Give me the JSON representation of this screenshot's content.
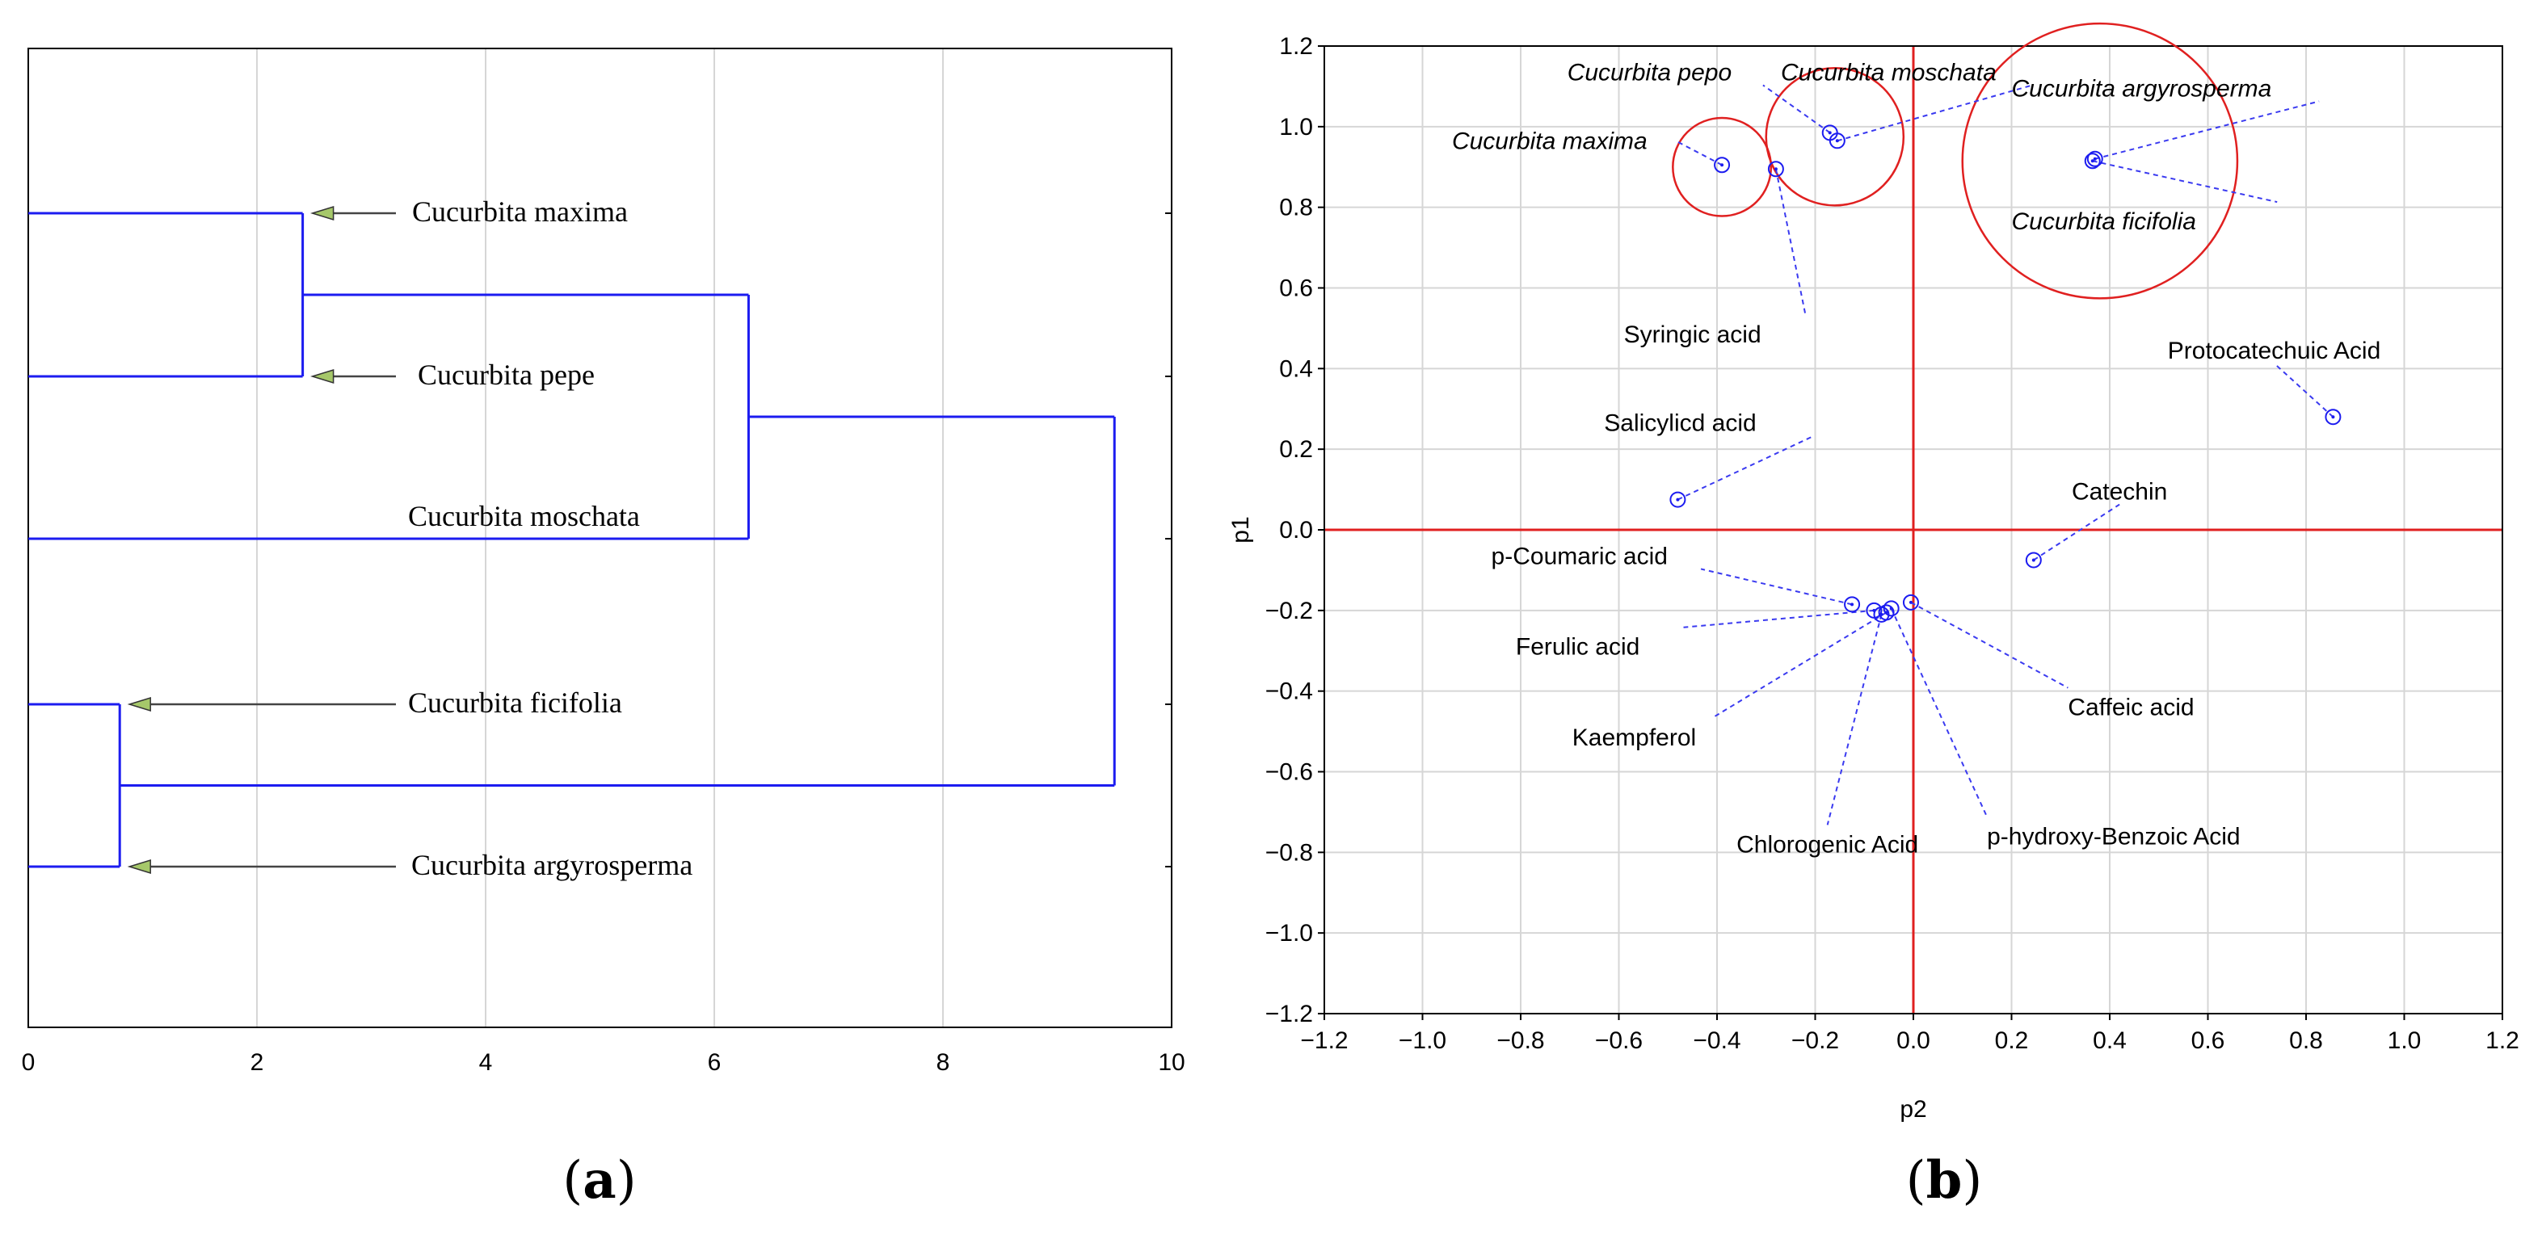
{
  "chart_data": [
    {
      "type": "dendrogram",
      "panel_label": "a",
      "title": "",
      "xlabel": "",
      "ylabel": "",
      "xlim": [
        0,
        10
      ],
      "x_ticks": [
        0,
        2,
        4,
        6,
        8,
        10
      ],
      "x_tick_labels": [
        "0",
        "2",
        "4",
        "6",
        "8",
        "10"
      ],
      "grid": "vertical",
      "colors": {
        "branch": "#1c1cf0",
        "grid": "#d6d6d6",
        "axis": "#000000",
        "arrow": "#444444",
        "arrowhead": "#a6c86a"
      },
      "leaves": [
        {
          "label": "Cucurbita maxima",
          "arrow": true
        },
        {
          "label": "Cucurbita pepe",
          "arrow": true
        },
        {
          "label": "Cucurbita moschata",
          "arrow": false
        },
        {
          "label": "Cucurbita ficifolia",
          "arrow": true
        },
        {
          "label": "Cucurbita argyrosperma",
          "arrow": true
        }
      ],
      "merges": [
        {
          "left": 0,
          "right": 1,
          "height": 2.4
        },
        {
          "left": "m0",
          "right": 2,
          "height": 6.3
        },
        {
          "left": 3,
          "right": 4,
          "height": 0.8
        },
        {
          "left": "m1",
          "right": "m2",
          "height": 9.5
        }
      ]
    },
    {
      "type": "scatter",
      "panel_label": "b",
      "title": "",
      "xlabel": "p2",
      "ylabel": "p1",
      "xlim": [
        -1.2,
        1.2
      ],
      "ylim": [
        -1.2,
        1.2
      ],
      "x_ticks": [
        -1.2,
        -1.0,
        -0.8,
        -0.6,
        -0.4,
        -0.2,
        0.0,
        0.2,
        0.4,
        0.6,
        0.8,
        1.0,
        1.2
      ],
      "x_tick_labels": [
        "−1.2",
        "−1.0",
        "−0.8",
        "−0.6",
        "−0.4",
        "−0.2",
        "0.0",
        "0.2",
        "0.4",
        "0.6",
        "0.8",
        "1.0",
        "1.2"
      ],
      "y_ticks": [
        1.2,
        1.0,
        0.8,
        0.6,
        0.4,
        0.2,
        0.0,
        -0.2,
        -0.4,
        -0.6,
        -0.8,
        -1.0,
        -1.2
      ],
      "y_tick_labels": [
        "1.2",
        "1.0",
        "0.8",
        "0.6",
        "0.4",
        "0.2",
        "0.0",
        "−0.2",
        "−0.4",
        "−0.6",
        "−0.8",
        "−1.0",
        "−1.2"
      ],
      "grid": true,
      "colors": {
        "points": "#1c1cf0",
        "leader": "#3a3af0",
        "axes_lines": "#e02020",
        "circles": "#e02020",
        "grid": "#d6d6d6"
      },
      "points": [
        {
          "label": "Cucurbita pepo",
          "x": -0.17,
          "y": 0.985,
          "italic": true,
          "label_at": [
            -0.705,
            1.115
          ],
          "anchor": "start"
        },
        {
          "label": "Cucurbita moschata",
          "x": -0.155,
          "y": 0.965,
          "italic": true,
          "label_at": [
            -0.27,
            1.115
          ],
          "anchor": "start"
        },
        {
          "label": "Cucurbita maxima",
          "x": -0.39,
          "y": 0.905,
          "italic": true,
          "label_at": [
            -0.94,
            0.945
          ],
          "anchor": "start"
        },
        {
          "label": "Syringic acid",
          "x": -0.28,
          "y": 0.895,
          "italic": false,
          "label_at": [
            -0.59,
            0.465
          ],
          "anchor": "start"
        },
        {
          "label": "Cucurbita argyrosperma",
          "x": 0.37,
          "y": 0.92,
          "italic": true,
          "label_at": [
            0.2,
            1.075
          ],
          "anchor": "start"
        },
        {
          "label": "Cucurbita ficifolia",
          "x": 0.365,
          "y": 0.915,
          "italic": true,
          "label_at": [
            0.2,
            0.745
          ],
          "anchor": "start"
        },
        {
          "label": "Protocatechuic Acid",
          "x": 0.855,
          "y": 0.28,
          "italic": false,
          "label_at": [
            0.735,
            0.425
          ],
          "anchor": "middle"
        },
        {
          "label": "Salicylicd acid",
          "x": -0.48,
          "y": 0.075,
          "italic": false,
          "label_at": [
            -0.63,
            0.245
          ],
          "anchor": "start"
        },
        {
          "label": "Catechin",
          "x": 0.245,
          "y": -0.075,
          "italic": false,
          "label_at": [
            0.42,
            0.075
          ],
          "anchor": "middle"
        },
        {
          "label": "p-Coumaric acid",
          "x": -0.125,
          "y": -0.185,
          "italic": false,
          "label_at": [
            -0.86,
            -0.085
          ],
          "anchor": "start"
        },
        {
          "label": "Ferulic acid",
          "x": -0.08,
          "y": -0.2,
          "italic": false,
          "label_at": [
            -0.81,
            -0.31
          ],
          "anchor": "start"
        },
        {
          "label": "Kaempferol",
          "x": -0.055,
          "y": -0.205,
          "italic": false,
          "label_at": [
            -0.695,
            -0.535
          ],
          "anchor": "start"
        },
        {
          "label": "Chlorogenic Acid",
          "x": -0.065,
          "y": -0.21,
          "italic": false,
          "label_at": [
            -0.175,
            -0.8
          ],
          "anchor": "middle"
        },
        {
          "label": "p-hydroxy-Benzoic Acid",
          "x": -0.045,
          "y": -0.195,
          "italic": false,
          "label_at": [
            0.15,
            -0.78
          ],
          "anchor": "start"
        },
        {
          "label": "Caffeic acid",
          "x": -0.005,
          "y": -0.18,
          "italic": false,
          "label_at": [
            0.315,
            -0.46
          ],
          "anchor": "start"
        }
      ],
      "highlight_circles": [
        {
          "x": -0.39,
          "y": 0.9,
          "r": 0.1
        },
        {
          "x": -0.16,
          "y": 0.975,
          "r": 0.14
        },
        {
          "x": 0.38,
          "y": 0.915,
          "r": 0.28
        }
      ]
    }
  ]
}
